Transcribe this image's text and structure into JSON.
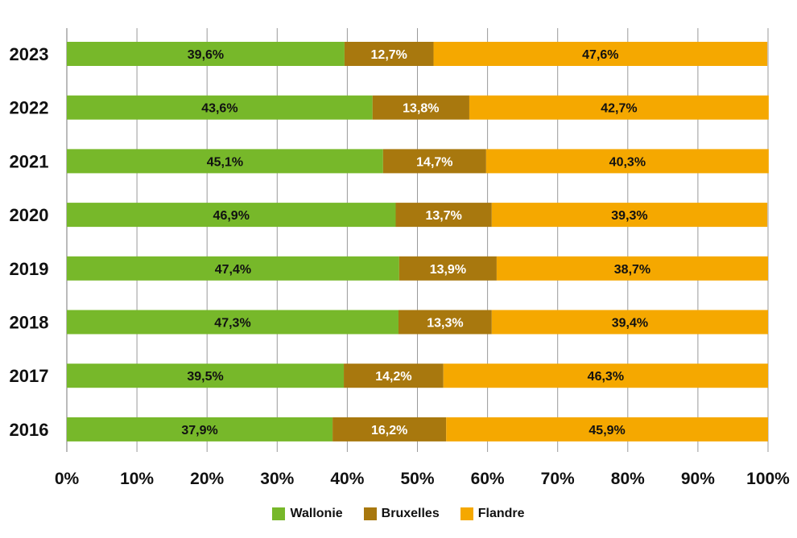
{
  "chart_data": {
    "type": "bar",
    "orientation": "horizontal",
    "stacked": true,
    "categories": [
      "2023",
      "2022",
      "2021",
      "2020",
      "2019",
      "2018",
      "2017",
      "2016"
    ],
    "series": [
      {
        "name": "Wallonie",
        "color": "#77b82a",
        "label_color": "#111111",
        "values": [
          39.6,
          43.6,
          45.1,
          46.9,
          47.4,
          47.3,
          39.5,
          37.9
        ],
        "labels": [
          "39,6%",
          "43,6%",
          "45,1%",
          "46,9%",
          "47,4%",
          "47,3%",
          "39,5%",
          "37,9%"
        ]
      },
      {
        "name": "Bruxelles",
        "color": "#a8780e",
        "label_color": "#ffffff",
        "values": [
          12.7,
          13.8,
          14.7,
          13.7,
          13.9,
          13.3,
          14.2,
          16.2
        ],
        "labels": [
          "12,7%",
          "13,8%",
          "14,7%",
          "13,7%",
          "13,9%",
          "13,3%",
          "14,2%",
          "16,2%"
        ]
      },
      {
        "name": "Flandre",
        "color": "#f5a800",
        "label_color": "#111111",
        "values": [
          47.6,
          42.7,
          40.3,
          39.3,
          38.7,
          39.4,
          46.3,
          45.9
        ],
        "labels": [
          "47,6%",
          "42,7%",
          "40,3%",
          "39,3%",
          "38,7%",
          "39,4%",
          "46,3%",
          "45,9%"
        ]
      }
    ],
    "xlim": [
      0,
      100
    ],
    "xticks": [
      "0%",
      "10%",
      "20%",
      "30%",
      "40%",
      "50%",
      "60%",
      "70%",
      "80%",
      "90%",
      "100%"
    ],
    "grid": true,
    "legend_position": "bottom"
  },
  "legend": {
    "items": [
      {
        "label": "Wallonie",
        "color": "#77b82a"
      },
      {
        "label": "Bruxelles",
        "color": "#a8780e"
      },
      {
        "label": "Flandre",
        "color": "#f5a800"
      }
    ]
  }
}
